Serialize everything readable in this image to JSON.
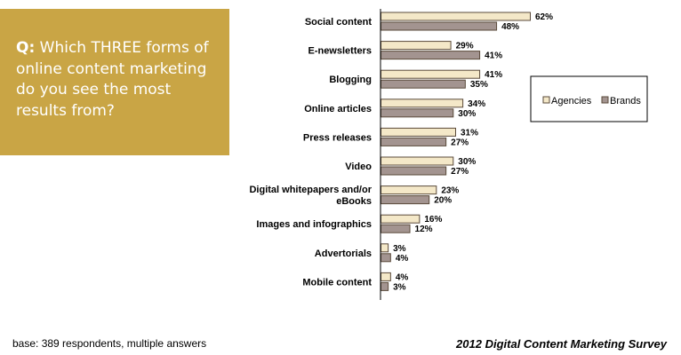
{
  "question": {
    "label": "Q:",
    "text": "Which THREE forms of online content marketing do you see the most results from?"
  },
  "footer": {
    "base": "base:  389 respondents, multiple answers",
    "source": "2012 Digital Content Marketing Survey"
  },
  "colors": {
    "question_box": "#C9A545",
    "agencies": "#F4E8C8",
    "brands": "#A39490",
    "bar_border": "#5a4a3a"
  },
  "chart_data": {
    "type": "bar",
    "orientation": "horizontal",
    "categories": [
      "Social content",
      "E-newsletters",
      "Blogging",
      "Online articles",
      "Press releases",
      "Video",
      "Digital whitepapers and/or eBooks",
      "Images and infographics",
      "Advertorials",
      "Mobile content"
    ],
    "series": [
      {
        "name": "Agencies",
        "values": [
          62,
          29,
          41,
          34,
          31,
          30,
          23,
          16,
          3,
          4
        ],
        "color": "#F4E8C8"
      },
      {
        "name": "Brands",
        "values": [
          48,
          41,
          35,
          30,
          27,
          27,
          20,
          12,
          4,
          3
        ],
        "color": "#A39490"
      }
    ],
    "value_suffix": "%",
    "xlim": [
      0,
      100
    ],
    "legend_position": "right",
    "grid": false
  }
}
